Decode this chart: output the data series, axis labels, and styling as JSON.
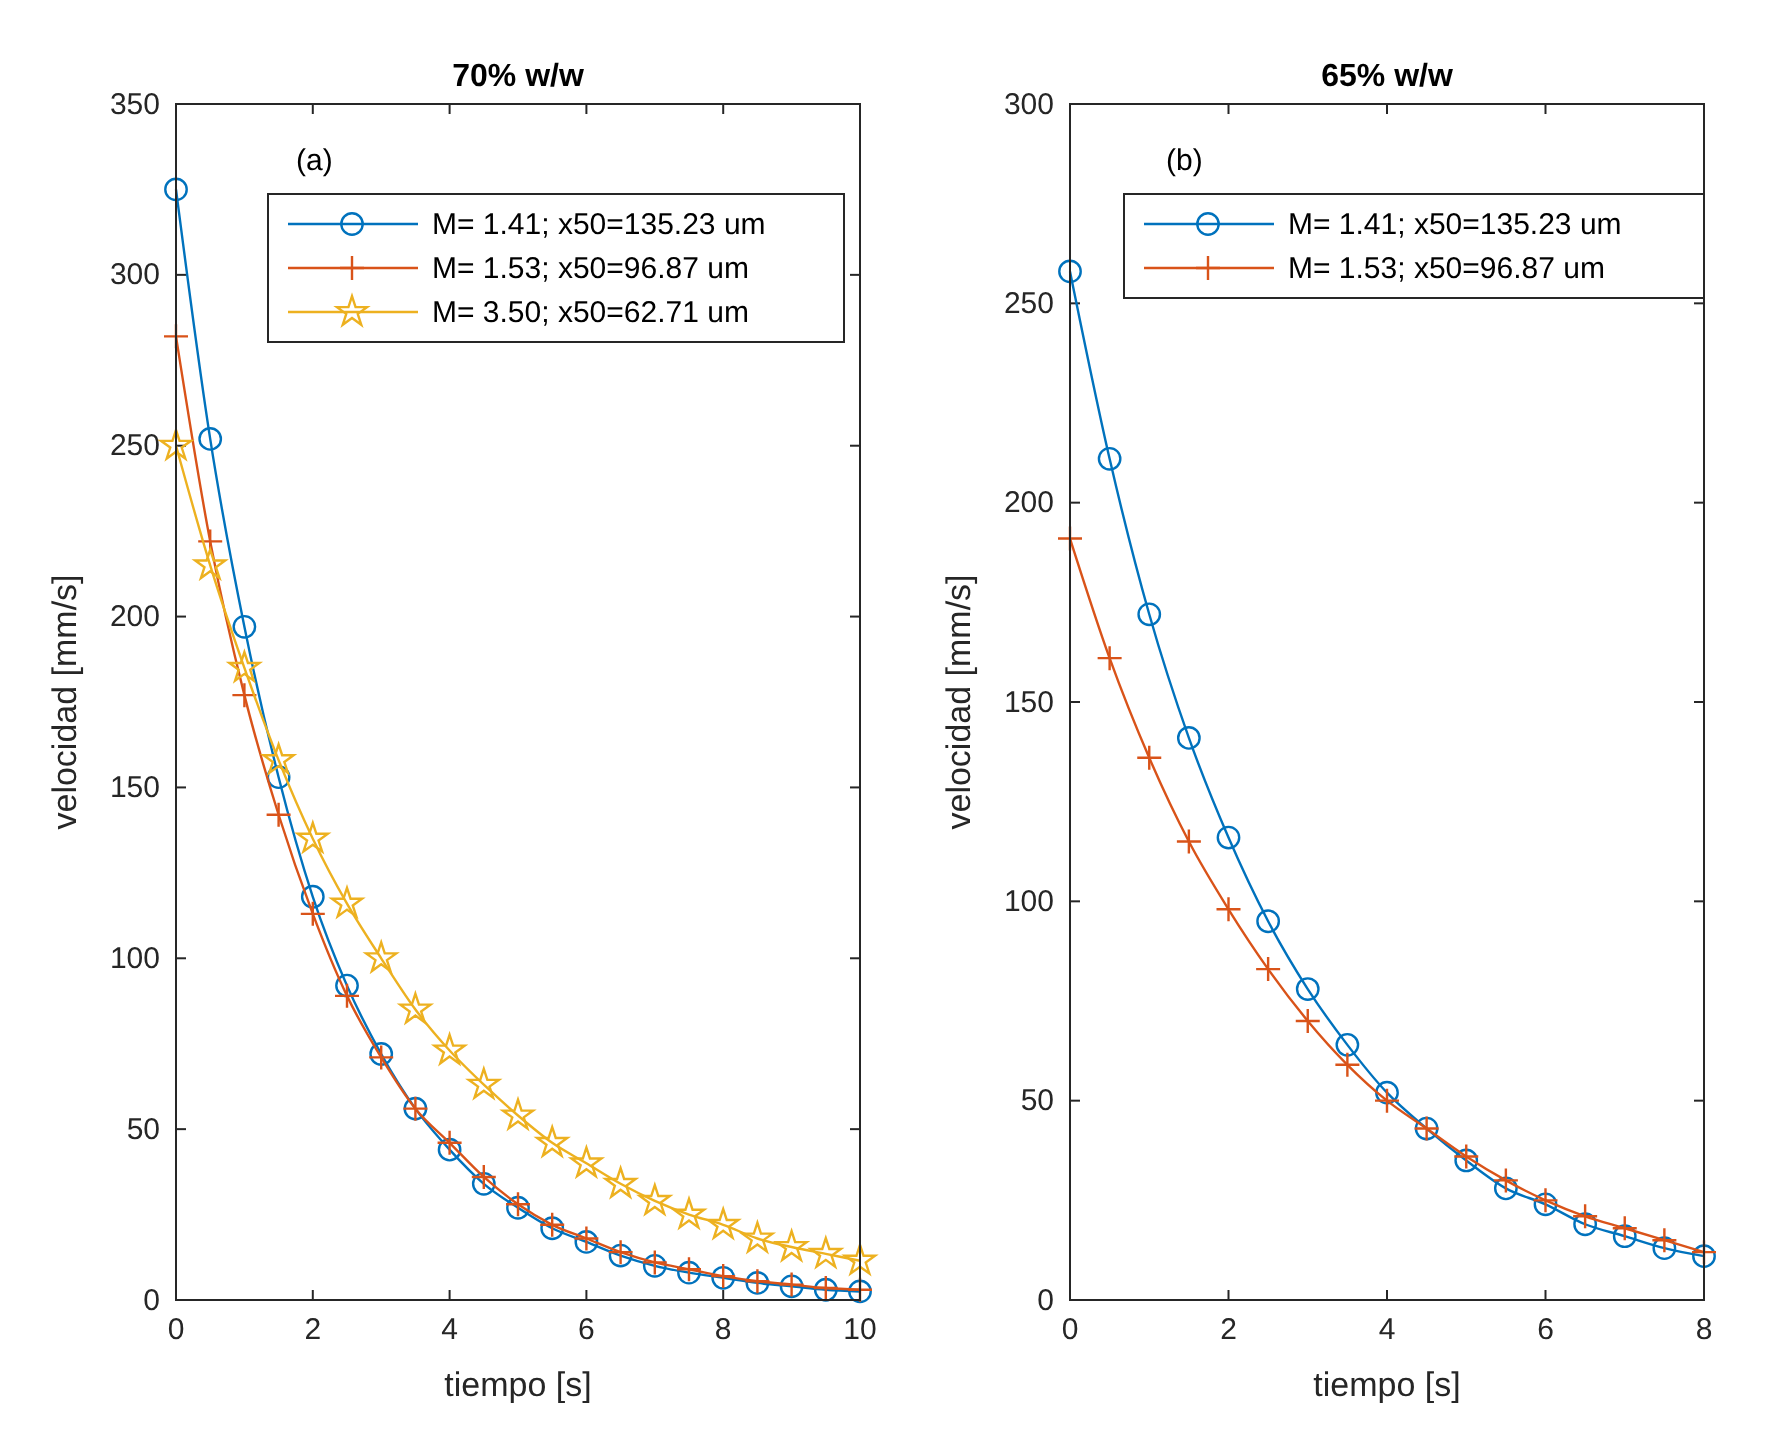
{
  "chart_data": [
    {
      "type": "line",
      "title": "70% w/w",
      "xlabel": "tiempo [s]",
      "ylabel": "velocidad [mm/s]",
      "annotations": [
        "(a)"
      ],
      "x": [
        0,
        0.5,
        1,
        1.5,
        2,
        2.5,
        3,
        3.5,
        4,
        4.5,
        5,
        5.5,
        6,
        6.5,
        7,
        7.5,
        8,
        8.5,
        9,
        9.5,
        10
      ],
      "xlim": [
        0,
        10
      ],
      "xticks": [
        0,
        2,
        4,
        6,
        8,
        10
      ],
      "ylim": [
        0,
        350
      ],
      "yticks": [
        0,
        50,
        100,
        150,
        200,
        250,
        300,
        350
      ],
      "legend": "top right",
      "grid": false,
      "series": [
        {
          "name": "M= 1.41; x50=135.23 um",
          "color": "#0072bd",
          "marker": "circle",
          "values": [
            325,
            252,
            197,
            153,
            118,
            92,
            72,
            56,
            44,
            34,
            27,
            21,
            17,
            13,
            10,
            8,
            6.5,
            5,
            4,
            3,
            2.5
          ]
        },
        {
          "name": "M= 1.53; x50=96.87 um",
          "color": "#d95319",
          "marker": "cross",
          "values": [
            282,
            222,
            177,
            142,
            113,
            89,
            71,
            56,
            46,
            36,
            28,
            22,
            18,
            14,
            11,
            9,
            7,
            5.5,
            4.5,
            3.5,
            3
          ]
        },
        {
          "name": "M= 3.50; x50=62.71 um",
          "color": "#edb120",
          "marker": "star",
          "values": [
            250,
            215,
            185,
            158,
            135,
            116,
            100,
            85,
            73,
            63,
            54,
            46,
            40,
            34,
            29,
            25,
            22,
            18,
            15.5,
            13.5,
            11.5
          ]
        }
      ]
    },
    {
      "type": "line",
      "title": "65% w/w",
      "xlabel": "tiempo [s]",
      "ylabel": "velocidad [mm/s]",
      "annotations": [
        "(b)"
      ],
      "x": [
        0,
        0.5,
        1,
        1.5,
        2,
        2.5,
        3,
        3.5,
        4,
        4.5,
        5,
        5.5,
        6,
        6.5,
        7,
        7.5,
        8
      ],
      "xlim": [
        0,
        8
      ],
      "xticks": [
        0,
        2,
        4,
        6,
        8
      ],
      "ylim": [
        0,
        300
      ],
      "yticks": [
        0,
        50,
        100,
        150,
        200,
        250,
        300
      ],
      "legend": "top right",
      "grid": false,
      "series": [
        {
          "name": "M= 1.41; x50=135.23 um",
          "color": "#0072bd",
          "marker": "circle",
          "values": [
            258,
            211,
            172,
            141,
            116,
            95,
            78,
            64,
            52,
            43,
            35,
            28,
            24,
            19,
            16,
            13,
            11
          ]
        },
        {
          "name": "M= 1.53; x50=96.87 um",
          "color": "#d95319",
          "marker": "cross",
          "values": [
            191,
            161,
            136,
            115,
            98,
            83,
            70,
            59,
            50,
            43,
            36,
            30,
            25,
            21,
            18,
            15,
            12
          ]
        }
      ]
    }
  ]
}
